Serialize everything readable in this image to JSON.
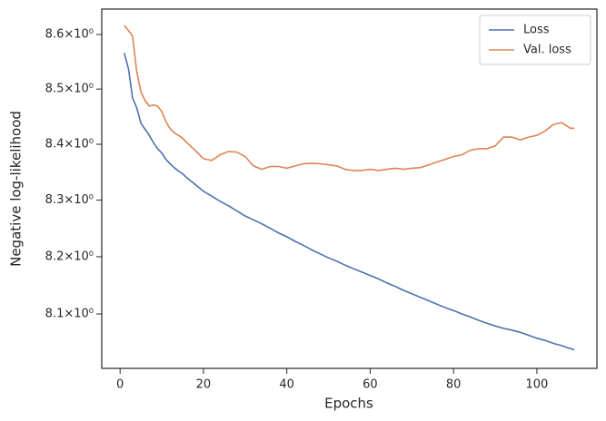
{
  "chart_data": {
    "type": "line",
    "xlabel": "Epochs",
    "ylabel": "Negative log-likelihood",
    "x": [
      1,
      2,
      3,
      4,
      5,
      6,
      7,
      8,
      9,
      10,
      11,
      12,
      13,
      14,
      15,
      16,
      18,
      20,
      22,
      24,
      26,
      28,
      30,
      32,
      34,
      36,
      38,
      40,
      42,
      44,
      46,
      48,
      50,
      52,
      54,
      56,
      58,
      60,
      62,
      64,
      66,
      68,
      70,
      72,
      74,
      76,
      78,
      80,
      82,
      84,
      86,
      88,
      90,
      92,
      94,
      96,
      98,
      100,
      102,
      104,
      106,
      108,
      109
    ],
    "series": [
      {
        "name": "Loss",
        "color": "#4c72b0",
        "values": [
          8.566,
          8.537,
          8.484,
          8.466,
          8.438,
          8.427,
          8.416,
          8.403,
          8.392,
          8.384,
          8.373,
          8.365,
          8.358,
          8.352,
          8.347,
          8.34,
          8.328,
          8.316,
          8.307,
          8.298,
          8.29,
          8.281,
          8.272,
          8.265,
          8.258,
          8.25,
          8.242,
          8.235,
          8.227,
          8.22,
          8.212,
          8.205,
          8.198,
          8.192,
          8.185,
          8.179,
          8.173,
          8.167,
          8.161,
          8.154,
          8.148,
          8.141,
          8.135,
          8.129,
          8.123,
          8.117,
          8.111,
          8.106,
          8.1,
          8.095,
          8.089,
          8.084,
          8.079,
          8.075,
          8.072,
          8.068,
          8.063,
          8.058,
          8.054,
          8.049,
          8.045,
          8.04,
          8.038
        ]
      },
      {
        "name": "Val. loss",
        "color": "#dd8452",
        "values": [
          8.617,
          8.607,
          8.597,
          8.532,
          8.495,
          8.479,
          8.469,
          8.471,
          8.469,
          8.459,
          8.441,
          8.428,
          8.421,
          8.416,
          8.411,
          8.403,
          8.389,
          8.374,
          8.371,
          8.381,
          8.387,
          8.386,
          8.378,
          8.361,
          8.355,
          8.36,
          8.36,
          8.357,
          8.361,
          8.365,
          8.366,
          8.365,
          8.363,
          8.361,
          8.355,
          8.353,
          8.353,
          8.355,
          8.353,
          8.355,
          8.357,
          8.355,
          8.357,
          8.358,
          8.363,
          8.368,
          8.373,
          8.378,
          8.381,
          8.389,
          8.392,
          8.392,
          8.397,
          8.413,
          8.413,
          8.408,
          8.413,
          8.416,
          8.424,
          8.436,
          8.439,
          8.429,
          8.429
        ]
      }
    ],
    "xlim": [
      -4.4,
      114.4
    ],
    "xticks": [
      0,
      20,
      40,
      60,
      80,
      100
    ],
    "ylim": [
      8.006,
      8.647
    ],
    "ylog": true,
    "yticks": [
      {
        "value": 8.1,
        "label": "8.1×10⁰"
      },
      {
        "value": 8.2,
        "label": "8.2×10⁰"
      },
      {
        "value": 8.3,
        "label": "8.3×10⁰"
      },
      {
        "value": 8.4,
        "label": "8.4×10⁰"
      },
      {
        "value": 8.5,
        "label": "8.5×10⁰"
      },
      {
        "value": 8.6,
        "label": "8.6×10⁰"
      }
    ],
    "grid": false,
    "legend": "upper right"
  }
}
